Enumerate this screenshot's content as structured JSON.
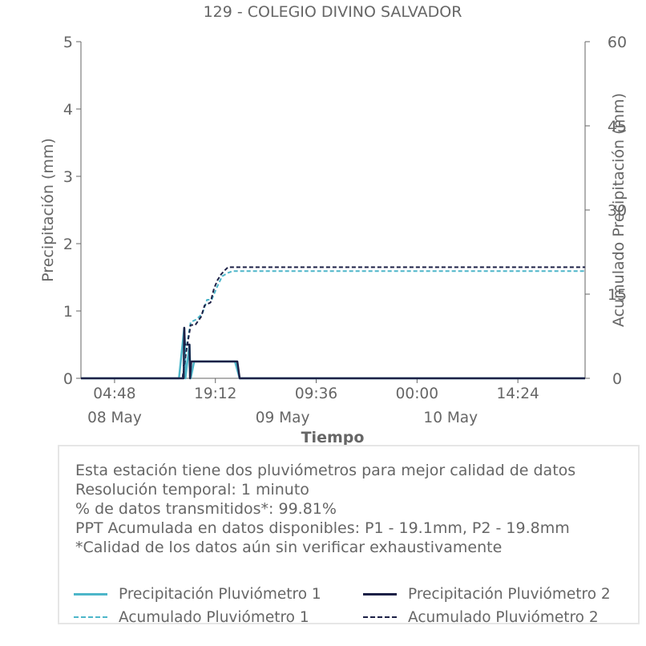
{
  "chart_data": {
    "type": "line",
    "title": "129 - COLEGIO DIVINO SALVADOR",
    "xlabel": "Tiempo",
    "ylabel": "Precipitación (mm)",
    "y2label": "Acumulado Precipitación (mm)",
    "ylim": [
      0,
      5
    ],
    "y2lim": [
      0,
      60
    ],
    "yticks": [
      0,
      1,
      2,
      3,
      4,
      5
    ],
    "y2ticks": [
      0,
      15,
      30,
      45,
      60
    ],
    "xlim": [
      "2024-05-08 00:00",
      "2024-05-11 00:00"
    ],
    "xticks": [
      {
        "x": "2024-05-08 04:48",
        "label": "04:48"
      },
      {
        "x": "2024-05-08 19:12",
        "label": "19:12"
      },
      {
        "x": "2024-05-09 09:36",
        "label": "09:36"
      },
      {
        "x": "2024-05-10 00:00",
        "label": "00:00"
      },
      {
        "x": "2024-05-10 14:24",
        "label": "14:24"
      }
    ],
    "date_labels": [
      {
        "x": "2024-05-08 04:48",
        "label": "08 May"
      },
      {
        "x": "2024-05-09 04:48",
        "label": "09 May"
      },
      {
        "x": "2024-05-10 04:48",
        "label": "10 May"
      }
    ],
    "grid": false,
    "legend_position": "bottom",
    "series": [
      {
        "name": "Precipitación Pluviómetro 1",
        "axis": "left",
        "style": "solid",
        "color": "#4db6c9",
        "x": [
          "2024-05-08 00:00",
          "2024-05-08 14:00",
          "2024-05-08 14:45",
          "2024-05-08 14:50",
          "2024-05-08 14:55",
          "2024-05-08 15:30",
          "2024-05-08 15:40",
          "2024-05-08 16:10",
          "2024-05-08 16:30",
          "2024-05-08 17:00",
          "2024-05-08 17:30",
          "2024-05-08 18:00",
          "2024-05-08 18:30",
          "2024-05-08 19:00",
          "2024-05-08 19:30",
          "2024-05-08 20:00",
          "2024-05-08 20:30",
          "2024-05-08 21:00",
          "2024-05-08 21:30",
          "2024-05-08 22:00",
          "2024-05-08 22:40",
          "2024-05-11 00:00"
        ],
        "y": [
          0,
          0,
          0.75,
          0.5,
          0,
          0.5,
          0,
          0.25,
          0.25,
          0.25,
          0.25,
          0.25,
          0.25,
          0.25,
          0.25,
          0.25,
          0.25,
          0.25,
          0.25,
          0.25,
          0,
          0
        ]
      },
      {
        "name": "Precipitación Pluviómetro 2",
        "axis": "left",
        "style": "solid",
        "color": "#1c2046",
        "x": [
          "2024-05-08 00:00",
          "2024-05-08 14:00",
          "2024-05-08 14:40",
          "2024-05-08 14:45",
          "2024-05-08 14:50",
          "2024-05-08 15:30",
          "2024-05-08 15:35",
          "2024-05-08 15:45",
          "2024-05-08 16:20",
          "2024-05-08 16:40",
          "2024-05-08 17:00",
          "2024-05-08 17:20",
          "2024-05-08 17:40",
          "2024-05-08 18:00",
          "2024-05-08 18:20",
          "2024-05-08 18:40",
          "2024-05-08 19:00",
          "2024-05-08 19:20",
          "2024-05-08 19:40",
          "2024-05-08 20:00",
          "2024-05-08 20:20",
          "2024-05-08 20:40",
          "2024-05-08 21:00",
          "2024-05-08 21:20",
          "2024-05-08 21:40",
          "2024-05-08 22:00",
          "2024-05-08 22:20",
          "2024-05-08 22:40",
          "2024-05-11 00:00"
        ],
        "y": [
          0,
          0,
          0,
          0.75,
          0.5,
          0.5,
          0,
          0.25,
          0.25,
          0.25,
          0.25,
          0.25,
          0.25,
          0.25,
          0.25,
          0.25,
          0.25,
          0.25,
          0.25,
          0.25,
          0.25,
          0.25,
          0.25,
          0.25,
          0.25,
          0.25,
          0.25,
          0,
          0
        ]
      },
      {
        "name": "Acumulado Pluviómetro 1",
        "axis": "right",
        "style": "dashed",
        "color": "#4db6c9",
        "x": [
          "2024-05-08 00:00",
          "2024-05-08 14:30",
          "2024-05-08 15:00",
          "2024-05-08 15:40",
          "2024-05-08 16:30",
          "2024-05-08 17:20",
          "2024-05-08 18:00",
          "2024-05-08 18:40",
          "2024-05-08 19:20",
          "2024-05-08 20:10",
          "2024-05-08 21:00",
          "2024-05-08 21:40",
          "2024-05-08 22:20",
          "2024-05-08 22:40",
          "2024-05-11 00:00"
        ],
        "y": [
          0,
          0,
          5,
          10,
          10.5,
          11.5,
          14,
          14,
          16,
          18.2,
          18.8,
          19.1,
          19.1,
          19.1,
          19.1
        ]
      },
      {
        "name": "Acumulado Pluviómetro 2",
        "axis": "right",
        "style": "dashed",
        "color": "#1c2046",
        "x": [
          "2024-05-08 00:00",
          "2024-05-08 14:30",
          "2024-05-08 15:00",
          "2024-05-08 15:40",
          "2024-05-08 16:20",
          "2024-05-08 17:10",
          "2024-05-08 17:40",
          "2024-05-08 18:30",
          "2024-05-08 19:00",
          "2024-05-08 19:30",
          "2024-05-08 20:00",
          "2024-05-08 20:30",
          "2024-05-08 21:00",
          "2024-05-08 21:40",
          "2024-05-08 22:00",
          "2024-05-08 22:40",
          "2024-05-11 00:00"
        ],
        "y": [
          0,
          0,
          4.5,
          9.5,
          9.5,
          11,
          13,
          13.5,
          16,
          17.5,
          18.5,
          19.2,
          19.8,
          19.8,
          19.8,
          19.8,
          19.8
        ]
      }
    ]
  },
  "info": {
    "lines": [
      "Esta estación tiene dos pluviómetros para mejor calidad de datos",
      "Resolución temporal: 1 minuto",
      "% de datos transmitidos*: 99.81%",
      "PPT Acumulada en datos disponibles: P1 - 19.1mm, P2 - 19.8mm",
      "*Calidad de los datos aún sin verificar exhaustivamente"
    ]
  },
  "colors": {
    "text": "#666666",
    "axis": "#666666",
    "series1": "#4db6c9",
    "series2": "#1c2046",
    "box_border": "#e6e6e6"
  }
}
